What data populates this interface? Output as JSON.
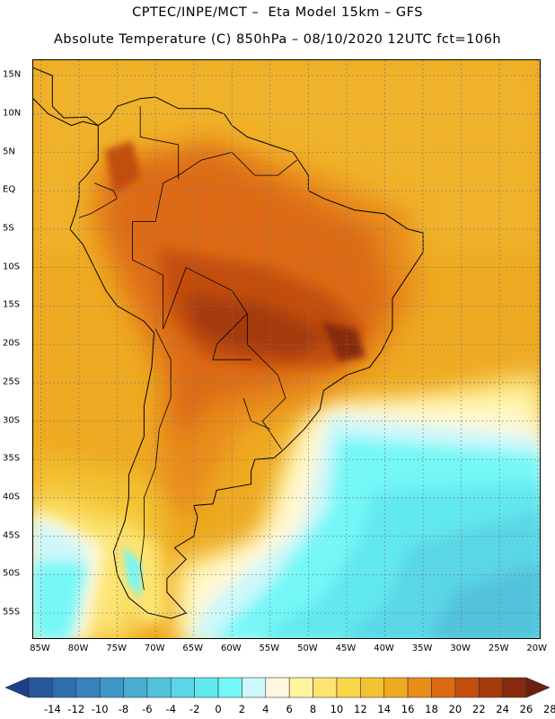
{
  "header": {
    "line1": "CPTEC/INPE/MCT –  Eta Model 15km – GFS",
    "line2": "Absolute Temperature (C) 850hPa – 08/10/2020 12UTC fct=106h"
  },
  "map": {
    "lon_range": [
      -86,
      -19.5
    ],
    "lat_range": [
      -58.5,
      17
    ],
    "land_outline_color": "#000000",
    "grid_style": "dotted",
    "lat_labels": [
      "15N",
      "10N",
      "5N",
      "EQ",
      "5S",
      "10S",
      "15S",
      "20S",
      "25S",
      "30S",
      "35S",
      "40S",
      "45S",
      "50S",
      "55S"
    ],
    "lat_values": [
      15,
      10,
      5,
      0,
      -5,
      -10,
      -15,
      -20,
      -25,
      -30,
      -35,
      -40,
      -45,
      -50,
      -55
    ],
    "lon_labels": [
      "85W",
      "80W",
      "75W",
      "70W",
      "65W",
      "60W",
      "55W",
      "50W",
      "45W",
      "40W",
      "35W",
      "30W",
      "25W",
      "20W"
    ],
    "lon_values": [
      -85,
      -80,
      -75,
      -70,
      -65,
      -60,
      -55,
      -50,
      -45,
      -40,
      -35,
      -30,
      -25,
      -20
    ]
  },
  "colorbar": {
    "labels": [
      "-14",
      "-12",
      "-10",
      "-8",
      "-6",
      "-4",
      "-2",
      "0",
      "2",
      "4",
      "6",
      "8",
      "10",
      "12",
      "14",
      "16",
      "18",
      "20",
      "22",
      "24",
      "26",
      "28"
    ],
    "colors": [
      "#1e3f8a",
      "#27589e",
      "#2f6eae",
      "#3783bd",
      "#3f98c8",
      "#48aed2",
      "#52c2dc",
      "#5ad6e6",
      "#62e8ef",
      "#74f7f7",
      "#cdf7fa",
      "#fff8de",
      "#fff4a0",
      "#fde472",
      "#f9d54a",
      "#f3c232",
      "#eeaa22",
      "#e88c1a",
      "#dc6a12",
      "#c24d0c",
      "#a53a0c",
      "#872a10",
      "#6e1e10"
    ]
  }
}
